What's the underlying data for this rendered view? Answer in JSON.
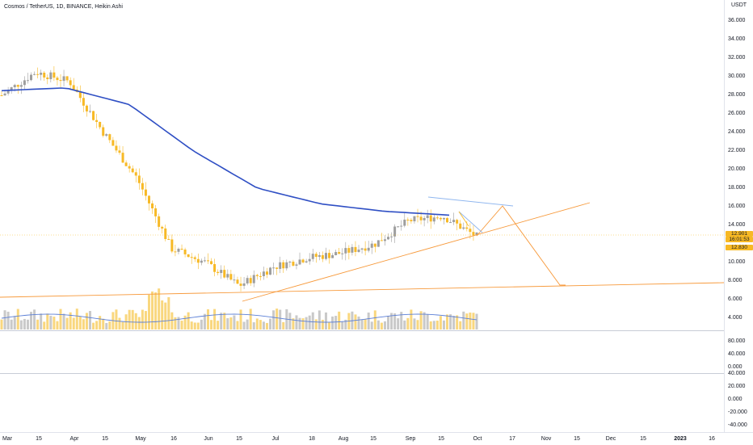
{
  "header": {
    "title": "Cosmos / TetherUS, 1D, BINANCE, Heikin Ashi"
  },
  "price_axis": {
    "unit": "USDT",
    "labels": [
      "36.000",
      "34.000",
      "32.000",
      "30.000",
      "28.000",
      "26.000",
      "24.000",
      "22.000",
      "20.000",
      "18.000",
      "16.000",
      "14.000",
      "10.000",
      "8.000",
      "6.000",
      "4.000"
    ],
    "price_tag_1": "12.901",
    "countdown": "16:01:53",
    "price_tag_2": "12.830"
  },
  "oscillator_axis": {
    "labels": [
      "80.000",
      "40.000",
      "0.000"
    ]
  },
  "volume_axis": {
    "labels": [
      "40.000",
      "20.000",
      "0.000",
      "-20.000",
      "-40.000"
    ]
  },
  "time_axis": {
    "labels": [
      "Mar",
      "15",
      "Apr",
      "15",
      "May",
      "16",
      "Jun",
      "15",
      "Jul",
      "18",
      "Aug",
      "15",
      "Sep",
      "15",
      "Oct",
      "17",
      "Nov",
      "15",
      "Dec",
      "15",
      "2023",
      "16"
    ]
  },
  "colors": {
    "up_candle": "#9e9e9e",
    "down_candle": "#f7b925",
    "ma_line": "#2f4fc4",
    "trendline": "#f79a3c",
    "price_tag_bg": "#f7b925",
    "volume_ma": "#5b7fd6"
  },
  "chart_data": {
    "type": "candlestick",
    "symbol": "Cosmos / TetherUS",
    "interval": "1D",
    "exchange": "BINANCE",
    "style": "Heikin Ashi",
    "ylim": [
      3,
      37
    ],
    "last_price": 12.901,
    "close_marker": 12.83,
    "ma_200_approx": [
      {
        "x": "Mar",
        "y": 28.5
      },
      {
        "x": "Apr",
        "y": 28.8
      },
      {
        "x": "May",
        "y": 27.0
      },
      {
        "x": "Jun",
        "y": 22.0
      },
      {
        "x": "Jul",
        "y": 18.0
      },
      {
        "x": "Aug",
        "y": 16.3
      },
      {
        "x": "Sep",
        "y": 15.5
      },
      {
        "x": "15 Sep",
        "y": 15.1
      }
    ],
    "price_path_approx": [
      {
        "x": "Mar",
        "y": 28.0
      },
      {
        "x": "15 Mar",
        "y": 30.5
      },
      {
        "x": "Apr",
        "y": 29.5
      },
      {
        "x": "15 Apr",
        "y": 24.0
      },
      {
        "x": "May",
        "y": 19.0
      },
      {
        "x": "16 May",
        "y": 11.5
      },
      {
        "x": "Jun",
        "y": 10.0
      },
      {
        "x": "15 Jun",
        "y": 7.5
      },
      {
        "x": "Jul",
        "y": 9.5
      },
      {
        "x": "18 Jul",
        "y": 10.5
      },
      {
        "x": "Aug",
        "y": 11.0
      },
      {
        "x": "15 Aug",
        "y": 12.0
      },
      {
        "x": "Sep",
        "y": 14.5
      },
      {
        "x": "15 Sep",
        "y": 15.0
      },
      {
        "x": "Oct",
        "y": 12.8
      }
    ],
    "projection_path": [
      {
        "x": "Oct",
        "y": 12.8
      },
      {
        "x": "17 Oct",
        "y": 16.2
      },
      {
        "x": "Nov",
        "y": 7.6
      }
    ]
  }
}
